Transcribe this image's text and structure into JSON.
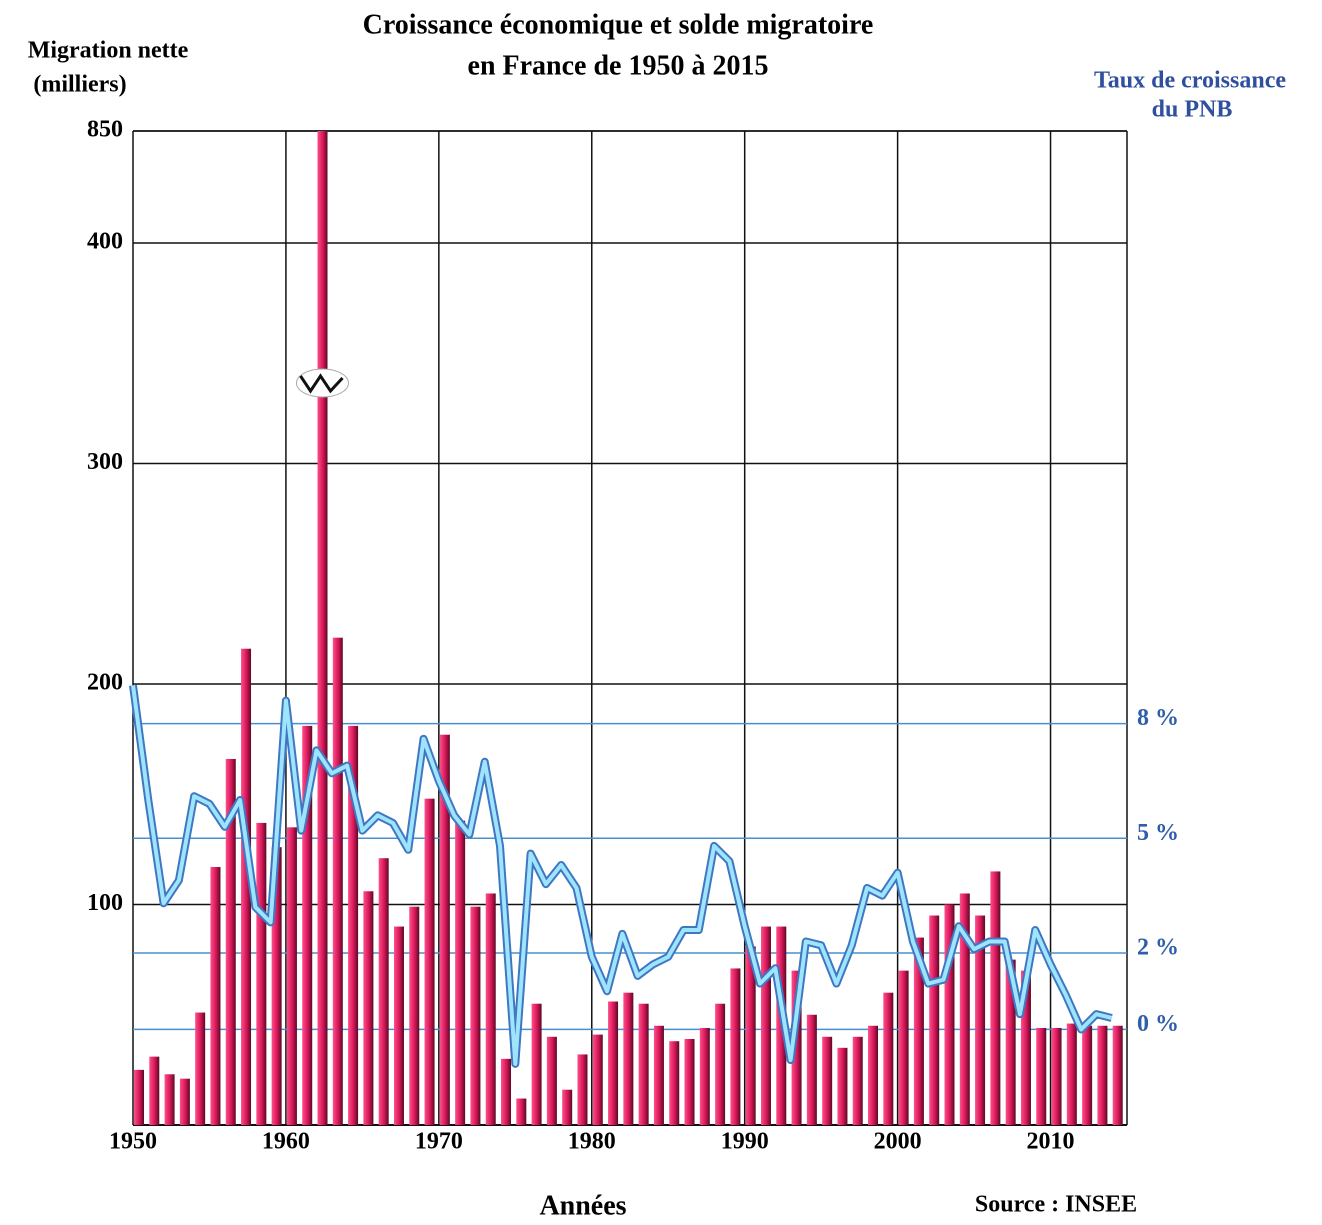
{
  "chart_data": {
    "type": "bar_line",
    "title": [
      "Croissance économique et solde migratoire",
      "en France de 1950 à 2015"
    ],
    "y_label": [
      "Migration nette",
      "(milliers)"
    ],
    "y2_label": [
      "Taux de croissance",
      "du PNB"
    ],
    "x_label": "Années",
    "source": "Source : INSEE",
    "x": [
      1950,
      1951,
      1952,
      1953,
      1954,
      1955,
      1956,
      1957,
      1958,
      1959,
      1960,
      1961,
      1962,
      1963,
      1964,
      1965,
      1966,
      1967,
      1968,
      1969,
      1970,
      1971,
      1972,
      1973,
      1974,
      1975,
      1976,
      1977,
      1978,
      1979,
      1980,
      1981,
      1982,
      1983,
      1984,
      1985,
      1986,
      1987,
      1988,
      1989,
      1990,
      1991,
      1992,
      1993,
      1994,
      1995,
      1996,
      1997,
      1998,
      1999,
      2000,
      2001,
      2002,
      2003,
      2004,
      2005,
      2006,
      2007,
      2008,
      2009,
      2010,
      2011,
      2012,
      2013,
      2014
    ],
    "xlim": [
      1950,
      2015
    ],
    "xticks": [
      1950,
      1960,
      1970,
      1980,
      1990,
      2000,
      2010
    ],
    "ylim": [
      0,
      850
    ],
    "y_break": [
      400,
      850
    ],
    "yticks": [
      100,
      200,
      300,
      400,
      850
    ],
    "y2lim": [
      -2.5,
      23.5
    ],
    "y2ticks": [
      {
        "value": 0,
        "label": "0 %"
      },
      {
        "value": 2,
        "label": "2 %"
      },
      {
        "value": 5,
        "label": "5 %"
      },
      {
        "value": 8,
        "label": "8 %"
      }
    ],
    "grid": true,
    "series": [
      {
        "type": "bar",
        "color": "#d6165a",
        "axis": "y",
        "values": [
          25,
          31,
          23,
          21,
          51,
          117,
          166,
          216,
          137,
          126,
          135,
          181,
          850,
          221,
          181,
          106,
          121,
          90,
          99,
          148,
          177,
          138,
          99,
          105,
          30,
          12,
          55,
          40,
          16,
          32,
          41,
          56,
          60,
          55,
          45,
          38,
          39,
          44,
          55,
          71,
          81,
          90,
          90,
          70,
          50,
          40,
          35,
          40,
          45,
          60,
          70,
          85,
          95,
          100,
          105,
          95,
          115,
          75,
          70,
          44,
          44,
          46,
          45,
          45,
          45
        ]
      },
      {
        "type": "line",
        "color": "#9fe4ff",
        "axis": "y2",
        "values": [
          9.0,
          6.0,
          3.3,
          3.9,
          6.1,
          5.9,
          5.3,
          6.0,
          3.2,
          2.8,
          8.6,
          5.2,
          7.3,
          6.7,
          6.9,
          5.2,
          5.6,
          5.4,
          4.7,
          7.6,
          6.5,
          5.6,
          5.1,
          7.0,
          4.8,
          -0.9,
          4.6,
          3.8,
          4.3,
          3.7,
          1.9,
          1.0,
          2.5,
          1.4,
          1.7,
          1.9,
          2.6,
          2.6,
          4.8,
          4.4,
          2.7,
          1.2,
          1.6,
          -0.8,
          2.3,
          2.2,
          1.2,
          2.2,
          3.7,
          3.5,
          4.1,
          2.3,
          1.2,
          1.3,
          2.7,
          2.1,
          2.3,
          2.3,
          0.4,
          2.6,
          1.7,
          0.9,
          0.0,
          0.4,
          0.3
        ]
      }
    ]
  }
}
